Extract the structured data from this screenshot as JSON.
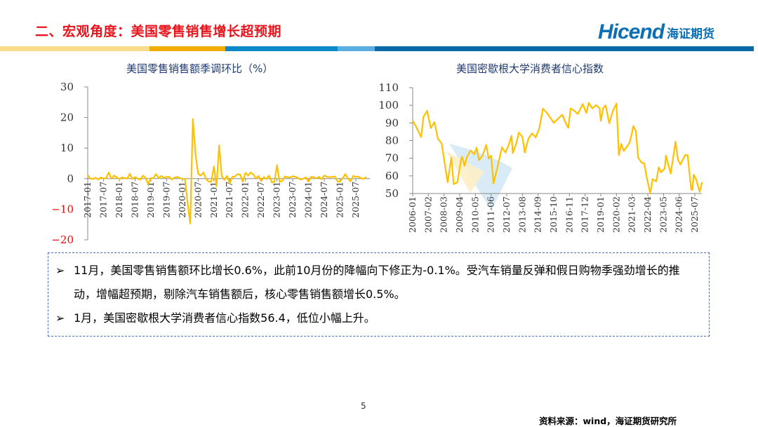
{
  "header": {
    "title": "二、宏观角度：美国零售销售增长超预期",
    "logo_en": "Hicend",
    "logo_cn": "海证期货",
    "stripe_colors": [
      "#f9dc8a",
      "#f0ad00",
      "#0a8ac8",
      "#5aaee0",
      "#0a6aa8"
    ]
  },
  "watermark": {
    "en": "Hicend",
    "cn": "海证期货"
  },
  "chart_data": [
    {
      "type": "line",
      "title": "美国零售销售额季调环比（%）",
      "ylim": [
        -20,
        30
      ],
      "yticks": [
        30,
        20,
        10,
        0,
        -10,
        -20
      ],
      "negative_tick_color": "#ff0000",
      "xticks": [
        "2017-01",
        "2017-07",
        "2018-01",
        "2018-07",
        "2019-01",
        "2019-07",
        "2020-01",
        "2020-07",
        "2021-01",
        "2021-07",
        "2022-01",
        "2022-07",
        "2023-01",
        "2023-07",
        "2024-01",
        "2024-07",
        "2025-01",
        "2025-07"
      ],
      "x_start": "2017-01",
      "series_color": "#ffc000",
      "values": [
        1.2,
        0,
        -0.1,
        0.3,
        -0.3,
        0.4,
        0,
        0.2,
        2,
        0,
        1,
        0.5,
        -0.2,
        0.4,
        0.2,
        0,
        1.6,
        -0.1,
        0.5,
        0,
        -0.3,
        1,
        0.3,
        -1.8,
        0.2,
        0.2,
        1.5,
        0.1,
        0.9,
        0.2,
        0.6,
        0.6,
        -0.3,
        0.3,
        0.6,
        0.2,
        0,
        -0.1,
        -8,
        -14.7,
        19.5,
        8,
        1.6,
        1,
        2,
        -0.1,
        -1,
        -1,
        4,
        -2.5,
        10.9,
        0.8,
        -0.4,
        0.9,
        -1.5,
        0.6,
        0.7,
        1.5,
        1.3,
        -1,
        1.9,
        1,
        2,
        1.4,
        0.1,
        0.9,
        -0.8,
        0.5,
        -0.1,
        1,
        -1.2,
        -1.1,
        4.4,
        -1,
        -0.8,
        0.7,
        0.5,
        0.4,
        0.8,
        0.6,
        0.2,
        -0.3,
        0,
        0.4,
        -1,
        0.6,
        0.5,
        0.1,
        0.6,
        -0.2,
        1,
        0.6,
        0.5,
        0.6,
        0.7,
        -0.9,
        -1,
        0.2,
        1.5,
        0,
        -0.9,
        0.9,
        0.6,
        0.6,
        0.2,
        -0.1,
        0.6
      ]
    },
    {
      "type": "line",
      "title": "美国密歇根大学消费者信心指数",
      "ylim": [
        50,
        110
      ],
      "yticks": [
        110,
        100,
        90,
        80,
        70,
        60,
        50
      ],
      "xticks": [
        "2006-01",
        "2007-02",
        "2008-03",
        "2009-04",
        "2010-05",
        "2011-06",
        "2012-07",
        "2013-08",
        "2014-09",
        "2015-10",
        "2016-11",
        "2017-12",
        "2019-01",
        "2020-02",
        "2021-03",
        "2022-04",
        "2023-05",
        "2024-06",
        "2025-07"
      ],
      "series_color": "#ffc000",
      "points": [
        [
          "2006-01",
          91.2
        ],
        [
          "2006-03",
          88.9
        ],
        [
          "2006-06",
          84.9
        ],
        [
          "2006-08",
          82
        ],
        [
          "2006-10",
          93.6
        ],
        [
          "2007-01",
          96.9
        ],
        [
          "2007-04",
          87.1
        ],
        [
          "2007-07",
          90.4
        ],
        [
          "2007-10",
          80.9
        ],
        [
          "2008-01",
          78.4
        ],
        [
          "2008-03",
          69.5
        ],
        [
          "2008-06",
          56.4
        ],
        [
          "2008-09",
          70.3
        ],
        [
          "2008-11",
          55.3
        ],
        [
          "2009-02",
          56.3
        ],
        [
          "2009-05",
          68.7
        ],
        [
          "2009-06",
          70.8
        ],
        [
          "2009-08",
          65.7
        ],
        [
          "2009-10",
          70.6
        ],
        [
          "2010-01",
          74.4
        ],
        [
          "2010-04",
          72.2
        ],
        [
          "2010-06",
          76
        ],
        [
          "2010-08",
          68.9
        ],
        [
          "2010-11",
          71.6
        ],
        [
          "2011-02",
          77.5
        ],
        [
          "2011-04",
          69.8
        ],
        [
          "2011-06",
          71.5
        ],
        [
          "2011-08",
          55.7
        ],
        [
          "2011-11",
          64.1
        ],
        [
          "2012-03",
          76.2
        ],
        [
          "2012-06",
          73.2
        ],
        [
          "2012-09",
          78.3
        ],
        [
          "2012-11",
          82.7
        ],
        [
          "2012-12",
          72.9
        ],
        [
          "2013-03",
          78.6
        ],
        [
          "2013-05",
          84.5
        ],
        [
          "2013-08",
          82.1
        ],
        [
          "2013-10",
          73.2
        ],
        [
          "2014-01",
          81.2
        ],
        [
          "2014-04",
          84.1
        ],
        [
          "2014-07",
          81.8
        ],
        [
          "2014-10",
          86.9
        ],
        [
          "2015-01",
          98.1
        ],
        [
          "2015-04",
          95.9
        ],
        [
          "2015-07",
          93.1
        ],
        [
          "2015-10",
          90
        ],
        [
          "2016-01",
          92
        ],
        [
          "2016-05",
          94.7
        ],
        [
          "2016-08",
          89.8
        ],
        [
          "2016-10",
          87.2
        ],
        [
          "2016-12",
          98.2
        ],
        [
          "2017-03",
          96.9
        ],
        [
          "2017-06",
          95.1
        ],
        [
          "2017-10",
          100.7
        ],
        [
          "2018-01",
          95.7
        ],
        [
          "2018-03",
          101.4
        ],
        [
          "2018-06",
          98.2
        ],
        [
          "2018-09",
          100.1
        ],
        [
          "2018-12",
          98.3
        ],
        [
          "2019-01",
          91.2
        ],
        [
          "2019-03",
          98.4
        ],
        [
          "2019-05",
          100
        ],
        [
          "2019-08",
          89.8
        ],
        [
          "2019-11",
          96.8
        ],
        [
          "2020-02",
          101
        ],
        [
          "2020-04",
          71.8
        ],
        [
          "2020-06",
          78.1
        ],
        [
          "2020-08",
          74.1
        ],
        [
          "2020-11",
          76.9
        ],
        [
          "2021-01",
          79
        ],
        [
          "2021-03",
          84.9
        ],
        [
          "2021-04",
          88.3
        ],
        [
          "2021-06",
          85.5
        ],
        [
          "2021-08",
          70.3
        ],
        [
          "2021-11",
          67.4
        ],
        [
          "2022-01",
          67.2
        ],
        [
          "2022-03",
          59.4
        ],
        [
          "2022-06",
          50
        ],
        [
          "2022-08",
          58.2
        ],
        [
          "2022-11",
          56.8
        ],
        [
          "2023-01",
          64.9
        ],
        [
          "2023-03",
          62
        ],
        [
          "2023-06",
          64.2
        ],
        [
          "2023-07",
          71.5
        ],
        [
          "2023-11",
          61.3
        ],
        [
          "2024-03",
          79.4
        ],
        [
          "2024-05",
          69.1
        ],
        [
          "2024-07",
          66.4
        ],
        [
          "2024-11",
          71.8
        ],
        [
          "2025-01",
          71.7
        ],
        [
          "2025-04",
          52.2
        ],
        [
          "2025-05",
          52.2
        ],
        [
          "2025-06",
          60.7
        ],
        [
          "2025-08",
          58.2
        ],
        [
          "2025-11",
          51
        ],
        [
          "2026-01",
          56.4
        ]
      ]
    }
  ],
  "notes": [
    "11月，美国零售销售额环比增长0.6%，此前10月份的降幅向下修正为-0.1%。受汽车销量反弹和假日购物季强劲增长的推动，增幅超预期，剔除汽车销售额后，核心零售销售额增长0.5%。",
    "1月，美国密歇根大学消费者信心指数56.4，低位小幅上升。"
  ],
  "note_bullet": "➢",
  "page_number": "5",
  "source": "资料来源：wind，海证期货研究所"
}
